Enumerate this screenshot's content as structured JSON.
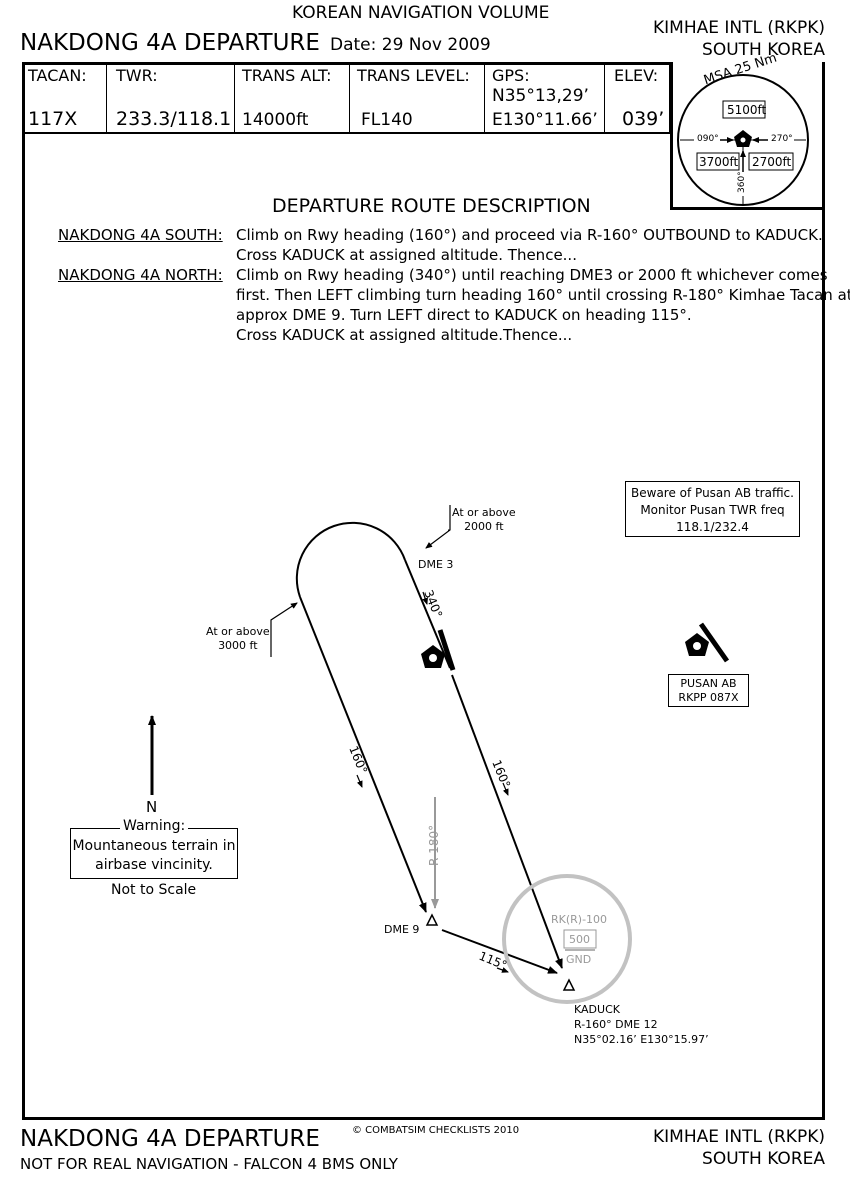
{
  "header": {
    "volume": "KOREAN NAVIGATION VOLUME",
    "title": "NAKDONG 4A DEPARTURE",
    "date": "Date: 29 Nov 2009",
    "airport": "KIMHAE INTL (RKPK)",
    "country": "SOUTH KOREA"
  },
  "info_bar": {
    "tacan_label": "TACAN:",
    "tacan_value": "117X",
    "twr_label": "TWR:",
    "twr_value": "233.3/118.1",
    "trans_alt_label": "TRANS ALT:",
    "trans_alt_value": "14000ft",
    "trans_level_label": "TRANS LEVEL:",
    "trans_level_value": "FL140",
    "gps_label": "GPS:",
    "gps_lat": "N35°13,29’",
    "gps_lon": "E130°11.66’",
    "elev_label": "ELEV:",
    "elev_value": "039’"
  },
  "msa": {
    "title": "MSA 25 Nm",
    "north_sector": "5100ft",
    "sw_sector": "3700ft",
    "se_sector": "2700ft",
    "bearing_090": "090°",
    "bearing_270": "270°",
    "bearing_360": "360°"
  },
  "description": {
    "heading": "DEPARTURE ROUTE DESCRIPTION",
    "south_label": "NAKDONG 4A SOUTH:",
    "south_line1": "Climb on Rwy heading (160°) and proceed via R-160° OUTBOUND to KADUCK.",
    "south_line2": "Cross KADUCK at assigned altitude. Thence...",
    "north_label": "NAKDONG 4A NORTH:",
    "north_line1": "Climb on Rwy heading (340°) until reaching DME3 or 2000 ft whichever comes",
    "north_line2": "first. Then LEFT climbing turn heading 160° until crossing R-180° Kimhae Tacan at",
    "north_line3": "approx DME 9. Turn LEFT direct to KADUCK on heading 115°.",
    "north_line4": "Cross KADUCK at assigned altitude.Thence..."
  },
  "map": {
    "beware_line1": "Beware of Pusan AB traffic.",
    "beware_line2": "Monitor Pusan TWR freq",
    "beware_line3": "118.1/232.4",
    "alt_2000_line1": "At or above",
    "alt_2000_line2": "2000 ft",
    "alt_3000_line1": "At or above",
    "alt_3000_line2": "3000 ft",
    "dme3": "DME 3",
    "hdg_340": "340°",
    "hdg_160_left": "160°",
    "hdg_160_right": "160°",
    "radial_180": "R-180°",
    "dme9": "DME 9",
    "hdg_115": "115°",
    "restricted_area": "RK(R)-100",
    "restricted_top": "500",
    "restricted_bottom": "GND",
    "kaduck_name": "KADUCK",
    "kaduck_dme": "R-160° DME 12",
    "kaduck_coords": "N35°02.16’ E130°15.97’",
    "pusan_name": "PUSAN AB",
    "pusan_tacan": "RKPP 087X",
    "north": "N",
    "warning_title": "Warning:",
    "warning_line1": "Mountaneous terrain in",
    "warning_line2": "airbase vincinity.",
    "not_to_scale": "Not to Scale"
  },
  "footer": {
    "title": "NAKDONG 4A DEPARTURE",
    "copyright": "© COMBATSIM CHECKLISTS 2010",
    "disclaimer": "NOT FOR REAL NAVIGATION - FALCON 4 BMS ONLY",
    "airport": "KIMHAE INTL (RKPK)",
    "country": "SOUTH KOREA"
  }
}
